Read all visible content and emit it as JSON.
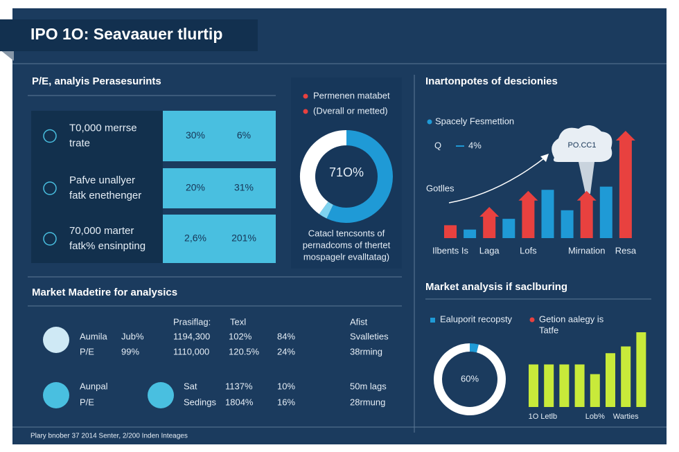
{
  "header": {
    "title": "IPO 1O: Seavaauer tlurtip"
  },
  "pe": {
    "title": "P/E, analyis Perasesurints",
    "rows": [
      [
        "T0,000 merrse",
        "trate",
        "30%",
        "6%"
      ],
      [
        "Pafve unallyer",
        "fatk enethenger",
        "20%",
        "31%"
      ],
      [
        "70,000 marter",
        "fatk% ensinpting",
        "2,6%",
        "201%"
      ]
    ]
  },
  "donut_panel": {
    "legend": [
      "Permenen matabet",
      "(Dverall or metted)"
    ],
    "center": "71O%",
    "caption": [
      "Catacl tencsonts of",
      "pernadcoms of thertet",
      "mospagelr evalltatag)"
    ]
  },
  "decisions": {
    "title": "Inartonpotes of descionies",
    "legend": "Spacely Fesmettion",
    "q": "Q",
    "q_value": "4%",
    "side_label": "Gotlles",
    "cloud": "PO.CC1"
  },
  "market_table": {
    "title": "Market Madetire for analysics",
    "header": [
      "Prasiflag:",
      "Texl",
      "Afist"
    ],
    "rows": [
      [
        "Aumila",
        "Jub%",
        "1194,300",
        "102%",
        "84%",
        "Svalleties"
      ],
      [
        "P/E",
        "99%",
        "1110,000",
        "120.5%",
        "24%",
        "38rming"
      ],
      [
        "Aunpal",
        "Sat",
        "1137%",
        "10%",
        "50m lags"
      ],
      [
        "P/E",
        "Sedings",
        "1804%",
        "16%",
        "28rmung"
      ]
    ]
  },
  "market_analysis": {
    "title": "Market analysis if saclburing",
    "legend": [
      "Ealuporit recopsty",
      "Getion aalegy is",
      "Tatfe"
    ],
    "center": "60%"
  },
  "footer": "Plary bnober 37 2014 Senter, 2/200 Inden Inteages",
  "chart_data": [
    {
      "type": "donut",
      "values": [
        57,
        3,
        40
      ],
      "colors": [
        "#1f9ad6",
        "#7fd3f0",
        "#ffffff"
      ]
    },
    {
      "type": "bar",
      "categories": [
        "Ilbents Is",
        null,
        "Laga",
        null,
        "Lofs",
        null,
        null,
        "Mirnation",
        null,
        "Resa"
      ],
      "values": [
        12,
        8,
        29,
        18,
        44,
        45,
        26,
        44,
        48,
        100
      ],
      "colors": [
        "#e8413f",
        "#1f9ad6",
        "#e8413f",
        "#1f9ad6",
        "#e8413f",
        "#1f9ad6",
        "#1f9ad6",
        "#e8413f",
        "#1f9ad6",
        "#e8413f"
      ],
      "arrows": [
        false,
        false,
        true,
        false,
        true,
        false,
        false,
        true,
        false,
        true
      ]
    },
    {
      "type": "donut",
      "values": [
        4,
        96
      ],
      "colors": [
        "#1f9ad6",
        "#ffffff"
      ]
    },
    {
      "type": "bar",
      "categories": [
        "1O",
        "Letlb",
        null,
        null,
        "Lob%",
        null,
        "Warties",
        null
      ],
      "values": [
        57,
        57,
        57,
        57,
        44,
        72,
        81,
        100
      ],
      "color": "#c8ea3a"
    }
  ]
}
